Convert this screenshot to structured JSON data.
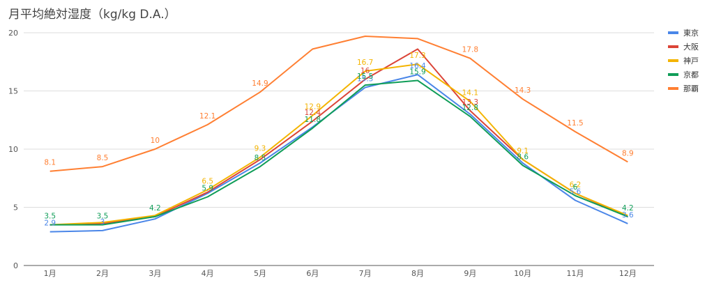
{
  "chart_data": {
    "type": "line",
    "title": "月平均絶対湿度（kg/kg D.A.）",
    "categories": [
      "1月",
      "2月",
      "3月",
      "4月",
      "5月",
      "6月",
      "7月",
      "8月",
      "9月",
      "10月",
      "11月",
      "12月"
    ],
    "ylim": [
      0,
      20
    ],
    "yticks": [
      0,
      5,
      10,
      15,
      20
    ],
    "grid": true,
    "legend_position": "right",
    "series": [
      {
        "name": "東京",
        "color": "#4a86e8",
        "values": [
          2.9,
          3,
          4,
          6.2,
          8.8,
          11.9,
          15.3,
          16.4,
          13,
          8.8,
          5.6,
          3.6
        ],
        "labels": [
          "2.9",
          "3",
          "",
          "",
          "",
          "",
          "15.3",
          "16.4",
          "",
          "",
          "5.6",
          "3.6"
        ]
      },
      {
        "name": "大阪",
        "color": "#db4437",
        "values": [
          3.5,
          3.6,
          4.2,
          6.3,
          9.1,
          12.4,
          16,
          18.6,
          13.3,
          9.1,
          6.2,
          4.2
        ],
        "labels": [
          "",
          "",
          "",
          "",
          "",
          "12.4",
          "16",
          "",
          "13.3",
          "",
          "",
          ""
        ]
      },
      {
        "name": "神戸",
        "color": "#f4b400",
        "values": [
          3.5,
          3.7,
          4.3,
          6.5,
          9.3,
          12.9,
          16.7,
          17.3,
          14.1,
          9.1,
          6.2,
          4.3
        ],
        "labels": [
          "",
          "",
          "",
          "6.5",
          "9.3",
          "12.9",
          "16.7",
          "17.3",
          "14.1",
          "9.1",
          "6.2",
          ""
        ]
      },
      {
        "name": "京都",
        "color": "#0f9d58",
        "values": [
          3.5,
          3.5,
          4.2,
          5.9,
          8.5,
          11.8,
          15.5,
          15.9,
          12.8,
          8.6,
          6,
          4.2
        ],
        "labels": [
          "3.5",
          "3.5",
          "4.2",
          "5.9",
          "8.5",
          "11.8",
          "15.5",
          "15.9",
          "12.8",
          "8.6",
          "6",
          "4.2"
        ]
      },
      {
        "name": "那覇",
        "color": "#ff7f32",
        "values": [
          8.1,
          8.5,
          10,
          12.1,
          14.9,
          18.6,
          19.7,
          19.5,
          17.8,
          14.3,
          11.5,
          8.9
        ],
        "labels": [
          "8.1",
          "8.5",
          "10",
          "12.1",
          "14.9",
          "",
          "",
          "",
          "17.8",
          "14.3",
          "11.5",
          "8.9"
        ]
      }
    ]
  }
}
